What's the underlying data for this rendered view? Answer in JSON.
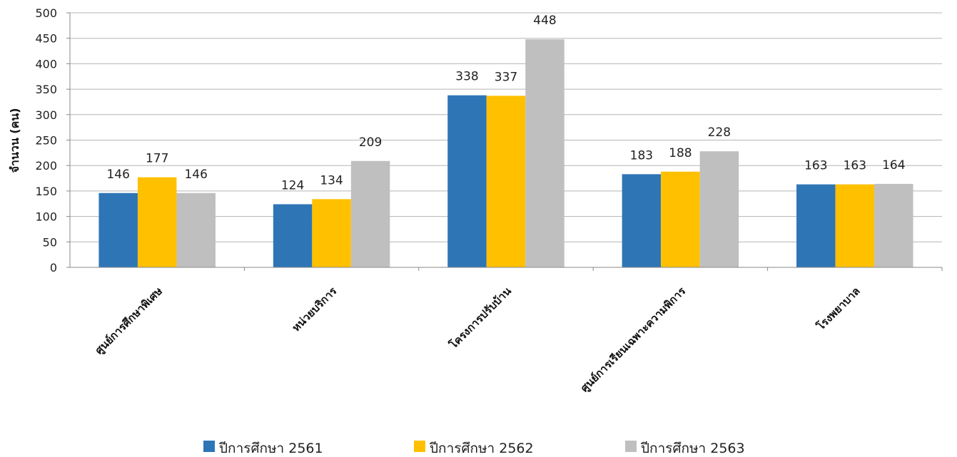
{
  "chart_data": {
    "type": "bar",
    "title": "",
    "xlabel": "",
    "ylabel": "จำนวน (คน)",
    "ylim": [
      0,
      500
    ],
    "yticks": [
      0,
      50,
      100,
      150,
      200,
      250,
      300,
      350,
      400,
      450,
      500
    ],
    "grid": true,
    "legend_position": "bottom",
    "categories": [
      "ศูนย์การศึกษาพิเศษ",
      "หน่วยบริการ",
      "โครงการปรับบ้าน",
      "ศูนย์การเรียนเฉพาะความพิการ",
      "โรงพยาบาล"
    ],
    "series": [
      {
        "name": "ปีการศึกษา 2561",
        "color": "#2E75B6",
        "values": [
          146,
          124,
          338,
          183,
          163
        ]
      },
      {
        "name": "ปีการศึกษา 2562",
        "color": "#FFC000",
        "values": [
          177,
          134,
          337,
          188,
          163
        ]
      },
      {
        "name": "ปีการศึกษา 2563",
        "color": "#BFBFBF",
        "values": [
          146,
          209,
          448,
          228,
          164
        ]
      }
    ]
  }
}
